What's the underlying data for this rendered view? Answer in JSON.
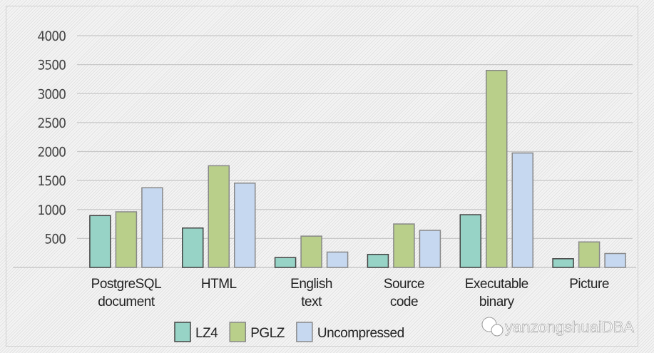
{
  "chart_data": {
    "type": "bar",
    "title": "",
    "xlabel": "",
    "ylabel": "",
    "ylim": [
      0,
      4000
    ],
    "yticks": [
      500,
      1000,
      1500,
      2000,
      2500,
      3000,
      3500,
      4000
    ],
    "grid": true,
    "legend_position": "bottom-left",
    "categories": [
      [
        "PostgreSQL",
        "document"
      ],
      [
        "HTML"
      ],
      [
        "English",
        "text"
      ],
      [
        "Source",
        "code"
      ],
      [
        "Executable",
        "binary"
      ],
      [
        "Picture"
      ]
    ],
    "series": [
      {
        "name": "LZ4",
        "color": "#97d3c6",
        "values": [
          895,
          680,
          170,
          225,
          910,
          150
        ]
      },
      {
        "name": "PGLZ",
        "color": "#b9cf8a",
        "values": [
          960,
          1755,
          540,
          750,
          3400,
          440
        ]
      },
      {
        "name": "Uncompressed",
        "color": "#c6d8f0",
        "values": [
          1375,
          1455,
          265,
          640,
          1975,
          240
        ]
      }
    ]
  },
  "watermark": {
    "text": "yanzongshuaiDBA",
    "icon": "wechat-icon"
  }
}
